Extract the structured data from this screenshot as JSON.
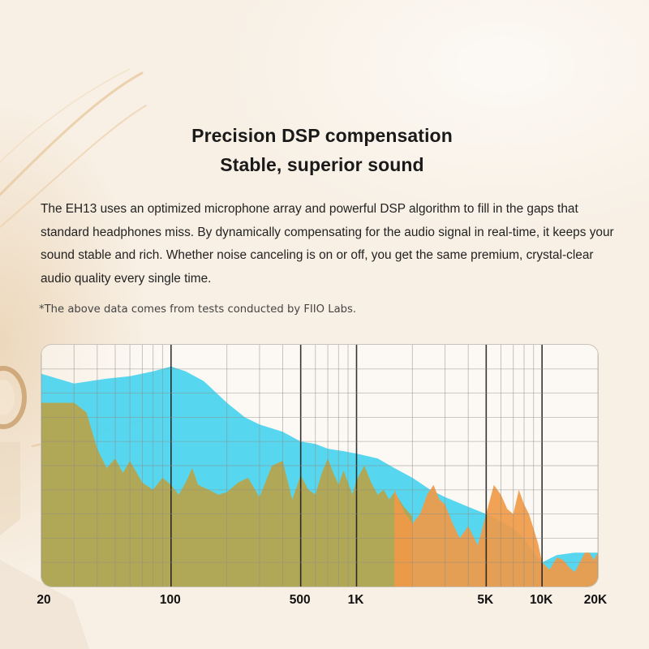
{
  "header": {
    "title_line1": "Precision DSP compensation",
    "title_line2": "Stable, superior sound"
  },
  "body": {
    "paragraph": "The EH13 uses an optimized microphone array and powerful DSP algorithm to fill in the gaps that standard headphones miss. By dynamically compensating for the audio signal in real-time, it keeps your sound stable and rich. Whether noise canceling is on or off, you get the same premium, crystal-clear audio quality every single time."
  },
  "footnote": "*The above data comes from tests conducted by FIIO Labs.",
  "colors": {
    "cyan_area": "#45d3ee",
    "olive_area": "#b7a44a",
    "orange_area": "#f09a46",
    "grid": "#8f8c86",
    "grid_major": "#1e1e1e"
  },
  "chart_data": {
    "type": "area",
    "title": "",
    "xlabel": "",
    "ylabel": "",
    "x_scale": "log",
    "xlim": [
      20,
      20000
    ],
    "ylim": [
      0,
      100
    ],
    "grid": true,
    "x_tick_labels": [
      {
        "value": 20,
        "label": "20"
      },
      {
        "value": 100,
        "label": "100"
      },
      {
        "value": 500,
        "label": "500"
      },
      {
        "value": 1000,
        "label": "1K"
      },
      {
        "value": 5000,
        "label": "5K"
      },
      {
        "value": 10000,
        "label": "10K"
      },
      {
        "value": 20000,
        "label": "20K"
      }
    ],
    "series": [
      {
        "color": "#45d3ee",
        "x": [
          20,
          30,
          45,
          60,
          80,
          100,
          120,
          150,
          200,
          250,
          300,
          400,
          500,
          600,
          700,
          850,
          1000,
          1300,
          1600,
          2000,
          2500,
          3000,
          4000,
          5000,
          6000,
          7000,
          8000,
          9000,
          10000,
          12000,
          15000,
          20000
        ],
        "values": [
          88,
          84,
          86,
          87,
          89,
          91,
          89,
          85,
          76,
          70,
          67,
          64,
          60,
          59,
          57,
          56,
          55,
          53,
          49,
          45,
          40,
          37,
          33,
          30,
          27,
          24,
          20,
          14,
          10,
          13,
          14,
          14
        ]
      },
      {
        "color": "#b7a44a",
        "x": [
          20,
          25,
          30,
          35,
          40,
          45,
          50,
          55,
          60,
          70,
          80,
          90,
          100,
          110,
          120,
          130,
          140,
          160,
          180,
          200,
          230,
          260,
          300,
          350,
          400,
          450,
          500,
          550,
          600,
          650,
          700,
          750,
          800,
          850,
          900,
          950,
          1000,
          1100,
          1200,
          1300,
          1400,
          1500,
          1600,
          1800,
          2000
        ],
        "values": [
          76,
          76,
          76,
          72,
          57,
          49,
          53,
          47,
          52,
          43,
          40,
          45,
          42,
          38,
          43,
          49,
          42,
          40,
          38,
          39,
          43,
          45,
          37,
          50,
          52,
          36,
          46,
          40,
          38,
          47,
          53,
          47,
          42,
          48,
          43,
          38,
          44,
          50,
          43,
          38,
          40,
          36,
          39,
          33,
          29
        ]
      },
      {
        "color": "#f09a46",
        "x": [
          1600,
          1800,
          2000,
          2200,
          2400,
          2600,
          2800,
          3000,
          3300,
          3600,
          4000,
          4500,
          5000,
          5500,
          6000,
          6500,
          7000,
          7500,
          8000,
          8500,
          9000,
          9500,
          10000,
          11000,
          12000,
          13000,
          14000,
          15000,
          16000,
          17000,
          18000,
          19000,
          20000
        ],
        "values": [
          40,
          31,
          26,
          30,
          38,
          42,
          36,
          34,
          26,
          20,
          25,
          17,
          30,
          42,
          38,
          32,
          30,
          40,
          34,
          30,
          24,
          18,
          10,
          7,
          12,
          11,
          8,
          6,
          10,
          14,
          14,
          11,
          14
        ]
      }
    ]
  }
}
